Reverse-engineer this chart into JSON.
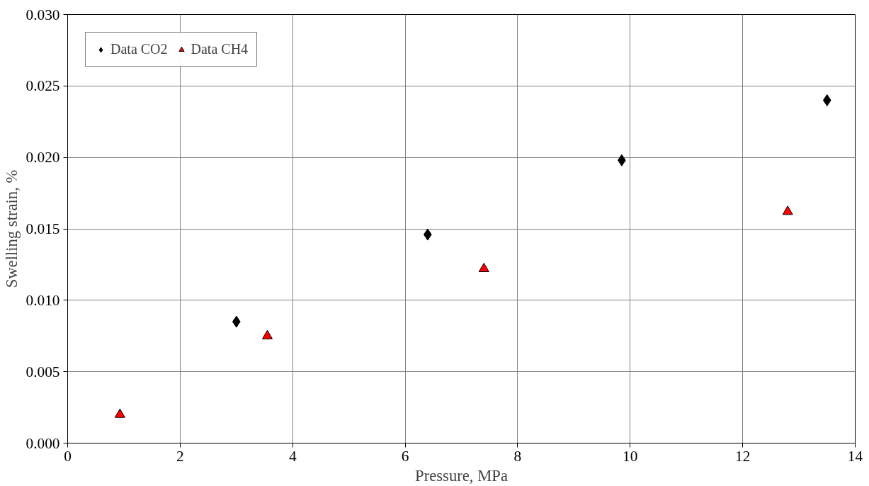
{
  "chart_data": {
    "type": "scatter",
    "xlabel": "Pressure, MPa",
    "ylabel": "Swelling strain, %",
    "xlim": [
      0,
      14
    ],
    "xticks": [
      0,
      2,
      4,
      6,
      8,
      10,
      12,
      14
    ],
    "ylim": [
      0,
      0.03
    ],
    "yticks": [
      {
        "value": 0,
        "label": "0.000"
      },
      {
        "value": 0.005,
        "label": "0.005"
      },
      {
        "value": 0.01,
        "label": "0.010"
      },
      {
        "value": 0.015,
        "label": "0.015"
      },
      {
        "value": 0.02,
        "label": "0.020"
      },
      {
        "value": 0.025,
        "label": "0.025"
      },
      {
        "value": 0.03,
        "label": "0.030"
      }
    ],
    "grid": true,
    "legend": "top left",
    "series": [
      {
        "name": "Data CO2",
        "color": "#000000",
        "marker": "diamond",
        "x": [
          3.0,
          6.4,
          9.85,
          13.5
        ],
        "values": [
          0.0085,
          0.0146,
          0.0198,
          0.024
        ]
      },
      {
        "name": "Data CH4",
        "color": "#ff0000",
        "marker": "triangle",
        "x": [
          0.93,
          3.55,
          7.4,
          12.8
        ],
        "values": [
          0.002,
          0.0075,
          0.0122,
          0.0162
        ]
      }
    ]
  }
}
